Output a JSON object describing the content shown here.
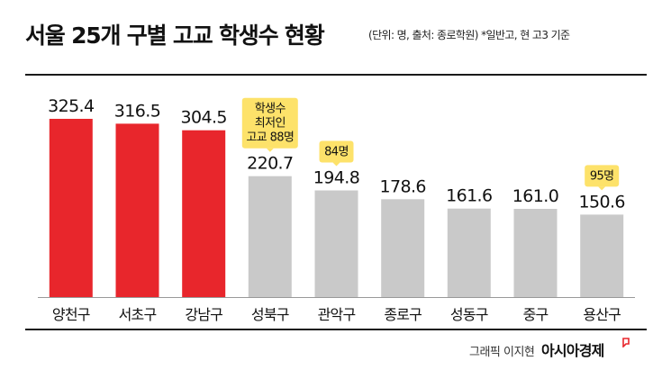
{
  "chart_data": {
    "type": "bar",
    "title": "서울 25개 구별 고교 학생수 현황",
    "subtitle": "(단위: 명, 출처: 종로학원)  *일반고, 현 고3 기준",
    "categories": [
      "양천구",
      "서초구",
      "강남구",
      "성북구",
      "관악구",
      "종로구",
      "성동구",
      "중구",
      "용산구"
    ],
    "values": [
      325.4,
      316.5,
      304.5,
      220.7,
      194.8,
      178.6,
      161.6,
      161.0,
      150.6
    ],
    "value_labels": [
      "325.4",
      "316.5",
      "304.5",
      "220.7",
      "194.8",
      "178.6",
      "161.6",
      "161.0",
      "150.6"
    ],
    "highlight_count": 3,
    "ylim": [
      0,
      325.4
    ],
    "grid": false,
    "legend": "none",
    "annotations": [
      {
        "category": "성북구",
        "lines": [
          "학생수",
          "최저인",
          "고교 88명"
        ]
      },
      {
        "category": "관악구",
        "lines": [
          "84명"
        ]
      },
      {
        "category": "용산구",
        "lines": [
          "95명"
        ]
      }
    ],
    "colors": {
      "highlight": "#e8262c",
      "normal": "#c9c9c9",
      "annotation_bg": "#fde26a",
      "axis": "#999999"
    }
  },
  "footer": {
    "credit": "그래픽 이지현",
    "brand": "아시아경제"
  }
}
